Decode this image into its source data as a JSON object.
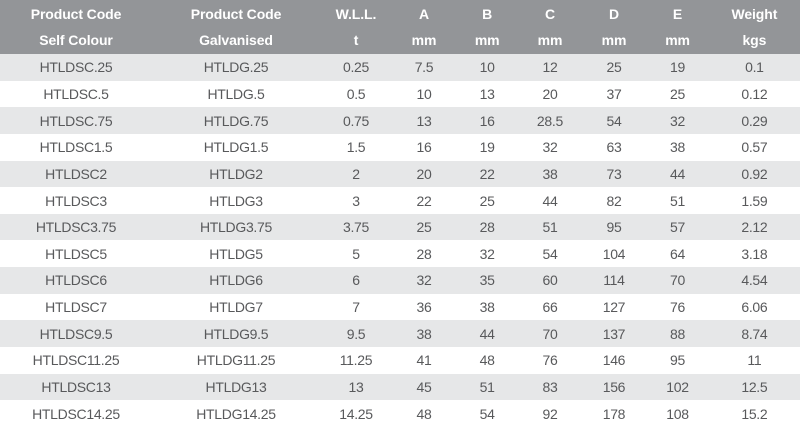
{
  "colors": {
    "header_bg": "#939598",
    "header_text": "#ffffff",
    "row_alt_bg": "#e6e7e8",
    "row_bg": "#ffffff",
    "cell_text": "#58595b"
  },
  "table": {
    "columns": [
      {
        "line1": "Product Code",
        "line2": "Self Colour"
      },
      {
        "line1": "Product Code",
        "line2": "Galvanised"
      },
      {
        "line1": "W.L.L.",
        "line2": "t"
      },
      {
        "line1": "A",
        "line2": "mm"
      },
      {
        "line1": "B",
        "line2": "mm"
      },
      {
        "line1": "C",
        "line2": "mm"
      },
      {
        "line1": "D",
        "line2": "mm"
      },
      {
        "line1": "E",
        "line2": "mm"
      },
      {
        "line1": "Weight",
        "line2": "kgs"
      }
    ],
    "rows": [
      [
        "HTLDSC.25",
        "HTLDG.25",
        "0.25",
        "7.5",
        "10",
        "12",
        "25",
        "19",
        "0.1"
      ],
      [
        "HTLDSC.5",
        "HTLDG.5",
        "0.5",
        "10",
        "13",
        "20",
        "37",
        "25",
        "0.12"
      ],
      [
        "HTLDSC.75",
        "HTLDG.75",
        "0.75",
        "13",
        "16",
        "28.5",
        "54",
        "32",
        "0.29"
      ],
      [
        "HTLDSC1.5",
        "HTLDG1.5",
        "1.5",
        "16",
        "19",
        "32",
        "63",
        "38",
        "0.57"
      ],
      [
        "HTLDSC2",
        "HTLDG2",
        "2",
        "20",
        "22",
        "38",
        "73",
        "44",
        "0.92"
      ],
      [
        "HTLDSC3",
        "HTLDG3",
        "3",
        "22",
        "25",
        "44",
        "82",
        "51",
        "1.59"
      ],
      [
        "HTLDSC3.75",
        "HTLDG3.75",
        "3.75",
        "25",
        "28",
        "51",
        "95",
        "57",
        "2.12"
      ],
      [
        "HTLDSC5",
        "HTLDG5",
        "5",
        "28",
        "32",
        "54",
        "104",
        "64",
        "3.18"
      ],
      [
        "HTLDSC6",
        "HTLDG6",
        "6",
        "32",
        "35",
        "60",
        "114",
        "70",
        "4.54"
      ],
      [
        "HTLDSC7",
        "HTLDG7",
        "7",
        "36",
        "38",
        "66",
        "127",
        "76",
        "6.06"
      ],
      [
        "HTLDSC9.5",
        "HTLDG9.5",
        "9.5",
        "38",
        "44",
        "70",
        "137",
        "88",
        "8.74"
      ],
      [
        "HTLDSC11.25",
        "HTLDG11.25",
        "11.25",
        "41",
        "48",
        "76",
        "146",
        "95",
        "11"
      ],
      [
        "HTLDSC13",
        "HTLDG13",
        "13",
        "45",
        "51",
        "83",
        "156",
        "102",
        "12.5"
      ],
      [
        "HTLDSC14.25",
        "HTLDG14.25",
        "14.25",
        "48",
        "54",
        "92",
        "178",
        "108",
        "15.2"
      ]
    ]
  }
}
